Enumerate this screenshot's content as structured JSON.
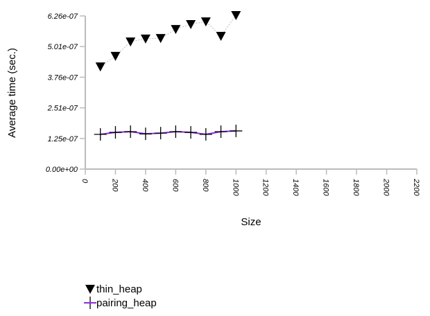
{
  "chart_data": {
    "type": "line",
    "xlabel": "Size",
    "ylabel": "Average time (sec.)",
    "xlim": [
      0,
      2200
    ],
    "ylim": [
      0,
      6.26e-07
    ],
    "xticks": [
      "0",
      "200",
      "400",
      "600",
      "800",
      "1000",
      "1200",
      "1400",
      "1600",
      "1800",
      "2000",
      "2200"
    ],
    "yticks": [
      "0.00e+00",
      "1.25e-07",
      "2.51e-07",
      "3.76e-07",
      "5.01e-07",
      "6.26e-07"
    ],
    "grid": false,
    "legend_position": "bottom-left",
    "x": [
      100,
      200,
      300,
      400,
      500,
      600,
      700,
      800,
      900,
      1000
    ],
    "series": [
      {
        "name": "thin_heap",
        "marker": "triangle-down",
        "color": "#000000",
        "line_color": "#bbbbbb",
        "values": [
          4.19e-07,
          4.62e-07,
          5.21e-07,
          5.33e-07,
          5.35e-07,
          5.72e-07,
          5.92e-07,
          6.03e-07,
          5.44e-07,
          6.29e-07
        ]
      },
      {
        "name": "pairing_heap",
        "marker": "plus",
        "color": "#000000",
        "line_color": "#8a2be2",
        "values": [
          1.42e-07,
          1.5e-07,
          1.53e-07,
          1.44e-07,
          1.47e-07,
          1.53e-07,
          1.5e-07,
          1.42e-07,
          1.53e-07,
          1.56e-07
        ]
      }
    ]
  }
}
